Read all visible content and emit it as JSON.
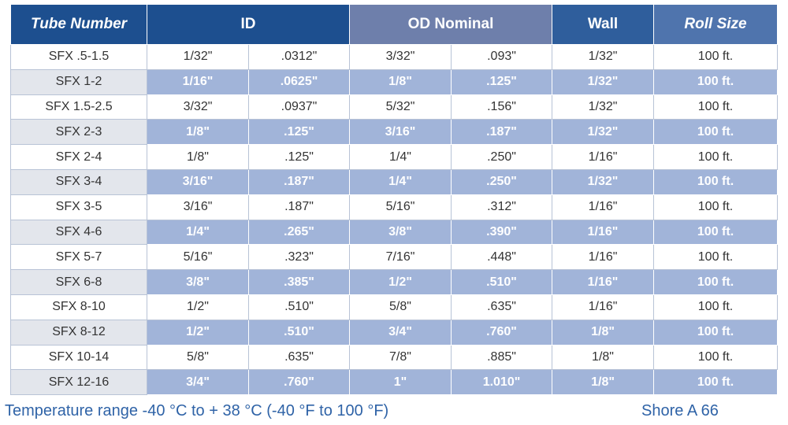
{
  "table": {
    "headers": {
      "tube_number": "Tube Number",
      "id": "ID",
      "od_nominal": "OD Nominal",
      "wall": "Wall",
      "roll_size": "Roll Size"
    },
    "rows": [
      [
        "SFX .5-1.5",
        "1/32\"",
        ".0312\"",
        "3/32\"",
        ".093\"",
        "1/32\"",
        "100 ft."
      ],
      [
        "SFX 1-2",
        "1/16\"",
        ".0625\"",
        "1/8\"",
        ".125\"",
        "1/32\"",
        "100 ft."
      ],
      [
        "SFX 1.5-2.5",
        "3/32\"",
        ".0937\"",
        "5/32\"",
        ".156\"",
        "1/32\"",
        "100 ft."
      ],
      [
        "SFX 2-3",
        "1/8\"",
        ".125\"",
        "3/16\"",
        ".187\"",
        "1/32\"",
        "100 ft."
      ],
      [
        "SFX 2-4",
        "1/8\"",
        ".125\"",
        "1/4\"",
        ".250\"",
        "1/16\"",
        "100 ft."
      ],
      [
        "SFX 3-4",
        "3/16\"",
        ".187\"",
        "1/4\"",
        ".250\"",
        "1/32\"",
        "100 ft."
      ],
      [
        "SFX 3-5",
        "3/16\"",
        ".187\"",
        "5/16\"",
        ".312\"",
        "1/16\"",
        "100 ft."
      ],
      [
        "SFX 4-6",
        "1/4\"",
        ".265\"",
        "3/8\"",
        ".390\"",
        "1/16\"",
        "100 ft."
      ],
      [
        "SFX 5-7",
        "5/16\"",
        ".323\"",
        "7/16\"",
        ".448\"",
        "1/16\"",
        "100 ft."
      ],
      [
        "SFX 6-8",
        "3/8\"",
        ".385\"",
        "1/2\"",
        ".510\"",
        "1/16\"",
        "100 ft."
      ],
      [
        "SFX 8-10",
        "1/2\"",
        ".510\"",
        "5/8\"",
        ".635\"",
        "1/16\"",
        "100 ft."
      ],
      [
        "SFX 8-12",
        "1/2\"",
        ".510\"",
        "3/4\"",
        ".760\"",
        "1/8\"",
        "100 ft."
      ],
      [
        "SFX 10-14",
        "5/8\"",
        ".635\"",
        "7/8\"",
        ".885\"",
        "1/8\"",
        "100 ft."
      ],
      [
        "SFX 12-16",
        "3/4\"",
        ".760\"",
        "1\"",
        "1.010\"",
        "1/8\"",
        "100 ft."
      ]
    ]
  },
  "footer": {
    "temperature": "Temperature range -40 °C to + 38 °C (-40 °F to 100 °F)",
    "shore": "Shore A 66"
  },
  "colors": {
    "header_dark": "#1d4f8f",
    "header_mid": "#6e7fab",
    "row_shaded": "#a1b4d9",
    "first_col_shaded": "#e3e6ec",
    "footer_text": "#2f63a7"
  }
}
